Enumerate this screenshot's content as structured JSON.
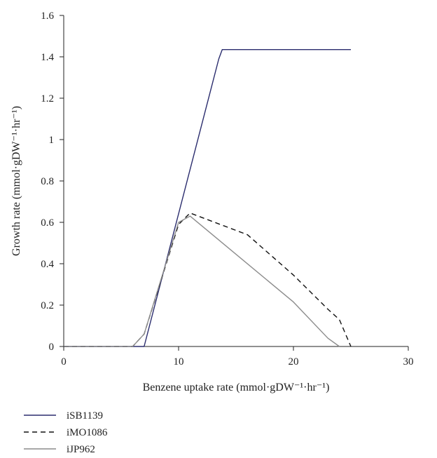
{
  "chart_data": {
    "type": "line",
    "title": "",
    "xlabel": "Benzene uptake rate (mmol·gDW⁻¹·hr⁻¹)",
    "ylabel": "Growth rate (mmol·gDW⁻¹·hr⁻¹)",
    "xlim": [
      0,
      30
    ],
    "ylim": [
      0,
      1.6
    ],
    "xticks": [
      0,
      10,
      20,
      30
    ],
    "xtick_labels": [
      "0",
      "10",
      "20",
      "30"
    ],
    "yticks": [
      0,
      0.2,
      0.4,
      0.6,
      0.8,
      1.0,
      1.2,
      1.4,
      1.6
    ],
    "ytick_labels": [
      "0",
      "0.2",
      "0.4",
      "0.6",
      "0.8",
      "1",
      "1.2",
      "1.4",
      "1.6"
    ],
    "grid": false,
    "legend_position": "bottom-left",
    "series": [
      {
        "name": "iSB1139",
        "color": "#2b2d6e",
        "dash": "solid",
        "x": [
          0,
          7,
          13.5,
          13.8,
          25
        ],
        "y": [
          0,
          0,
          1.39,
          1.435,
          1.435
        ]
      },
      {
        "name": "iMO1086",
        "color": "#111111",
        "dash": "dashed",
        "x": [
          0,
          6,
          7,
          10,
          11,
          16,
          20,
          23,
          24,
          25
        ],
        "y": [
          0,
          0,
          0.06,
          0.59,
          0.645,
          0.54,
          0.345,
          0.18,
          0.13,
          0
        ]
      },
      {
        "name": "iJP962",
        "color": "#8c8c8c",
        "dash": "solid",
        "x": [
          0,
          6,
          7,
          10,
          11,
          20,
          23,
          24
        ],
        "y": [
          0,
          0,
          0.06,
          0.6,
          0.63,
          0.215,
          0.04,
          0
        ]
      }
    ]
  }
}
